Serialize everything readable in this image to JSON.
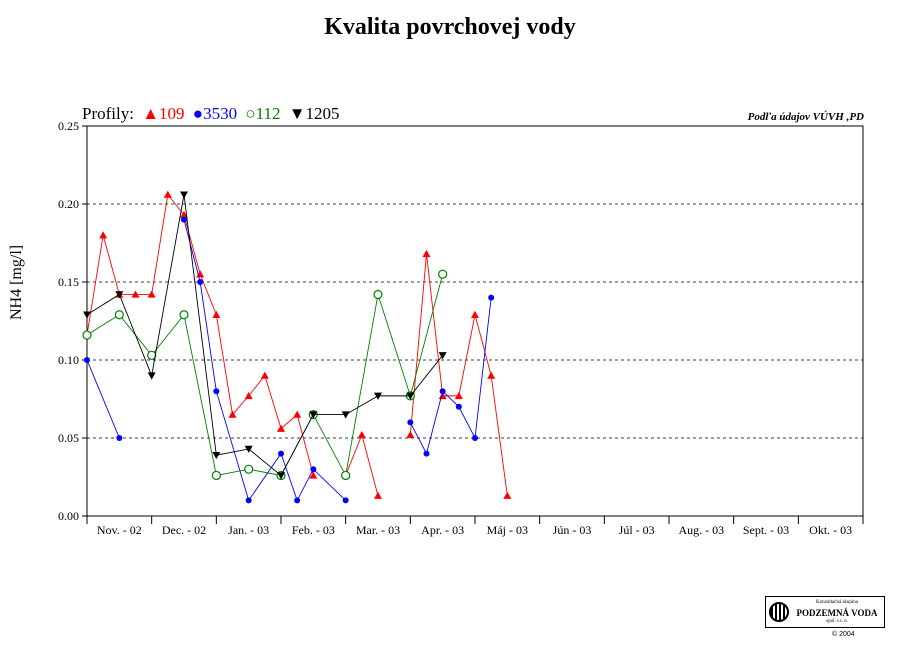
{
  "title": "Kvalita povrchovej vody",
  "source": "Podľa údajov VÚVH ,PD",
  "legend_prefix": "Profily:",
  "logo": {
    "line1": "Konzultačná skupina",
    "line2": "PODZEMNÁ VODA",
    "line3": "spol. s r. o."
  },
  "copyright": "© 2004",
  "colors": {
    "s109": "#ff0000",
    "s3530": "#0000ff",
    "s112": "#008000",
    "s1205": "#000000"
  },
  "chart_data": {
    "type": "line",
    "ylabel": "NH4 [mg/l]",
    "ylim": [
      0,
      0.25
    ],
    "yticks": [
      "0.00",
      "0.05",
      "0.10",
      "0.15",
      "0.20",
      "0.25"
    ],
    "grid": "horizontal-dashed",
    "legend_placement": "top-left",
    "categories": [
      "Nov. - 02",
      "Dec. - 02",
      "Jan. - 03",
      "Feb. - 03",
      "Mar. - 03",
      "Apr. - 03",
      "Máj - 03",
      "Jún - 03",
      "Júl - 03",
      "Aug. - 03",
      "Sept. - 03",
      "Okt. - 03"
    ],
    "series": [
      {
        "name": "109",
        "marker": "triangle-up",
        "color": "#ff0000",
        "points": [
          {
            "x": 0.0,
            "y": 0.116
          },
          {
            "x": 0.5,
            "y": 0.18
          },
          {
            "x": 1.0,
            "y": 0.142
          },
          {
            "x": 1.5,
            "y": 0.142
          },
          {
            "x": 2.0,
            "y": 0.142
          },
          {
            "x": 2.5,
            "y": 0.206
          },
          {
            "x": 3.0,
            "y": 0.193
          },
          {
            "x": 3.5,
            "y": 0.155
          },
          {
            "x": 4.0,
            "y": 0.129
          },
          {
            "x": 4.5,
            "y": 0.065
          },
          {
            "x": 5.0,
            "y": 0.077
          },
          {
            "x": 5.5,
            "y": 0.09
          },
          {
            "x": 6.0,
            "y": 0.056
          },
          {
            "x": 6.5,
            "y": 0.065
          },
          {
            "x": 7.0,
            "y": 0.026
          },
          {
            "x": 7.5,
            "y": null
          },
          {
            "x": 8.0,
            "y": 0.026
          },
          {
            "x": 8.5,
            "y": 0.052
          },
          {
            "x": 9.0,
            "y": 0.013
          },
          {
            "x": 9.5,
            "y": null
          },
          {
            "x": 10.0,
            "y": 0.052
          },
          {
            "x": 10.5,
            "y": 0.168
          },
          {
            "x": 11.0,
            "y": 0.077
          },
          {
            "x": 11.5,
            "y": 0.077
          },
          {
            "x": 12.0,
            "y": 0.129
          },
          {
            "x": 12.5,
            "y": 0.09
          },
          {
            "x": 13.0,
            "y": 0.013
          }
        ]
      },
      {
        "name": "3530",
        "marker": "circle-filled",
        "color": "#0000ff",
        "points": [
          {
            "x": 0.0,
            "y": 0.1
          },
          {
            "x": 1.0,
            "y": 0.05
          },
          {
            "x": 2.0,
            "y": null
          },
          {
            "x": 3.0,
            "y": 0.19
          },
          {
            "x": 3.5,
            "y": 0.15
          },
          {
            "x": 4.0,
            "y": 0.08
          },
          {
            "x": 5.0,
            "y": 0.01
          },
          {
            "x": 6.0,
            "y": 0.04
          },
          {
            "x": 6.5,
            "y": 0.01
          },
          {
            "x": 7.0,
            "y": 0.03
          },
          {
            "x": 8.0,
            "y": 0.01
          },
          {
            "x": 9.0,
            "y": null
          },
          {
            "x": 10.0,
            "y": 0.06
          },
          {
            "x": 10.5,
            "y": 0.04
          },
          {
            "x": 11.0,
            "y": 0.08
          },
          {
            "x": 11.5,
            "y": 0.07
          },
          {
            "x": 12.0,
            "y": 0.05
          },
          {
            "x": 12.5,
            "y": 0.14
          }
        ]
      },
      {
        "name": "112",
        "marker": "circle-open",
        "color": "#008000",
        "points": [
          {
            "x": 0.0,
            "y": 0.116
          },
          {
            "x": 1.0,
            "y": 0.129
          },
          {
            "x": 2.0,
            "y": 0.103
          },
          {
            "x": 3.0,
            "y": 0.129
          },
          {
            "x": 4.0,
            "y": 0.026
          },
          {
            "x": 5.0,
            "y": 0.03
          },
          {
            "x": 6.0,
            "y": 0.026
          },
          {
            "x": 7.0,
            "y": 0.065
          },
          {
            "x": 8.0,
            "y": 0.026
          },
          {
            "x": 9.0,
            "y": 0.142
          },
          {
            "x": 10.0,
            "y": 0.077
          },
          {
            "x": 11.0,
            "y": 0.155
          }
        ]
      },
      {
        "name": "1205",
        "marker": "triangle-down",
        "color": "#000000",
        "points": [
          {
            "x": 0.0,
            "y": 0.129
          },
          {
            "x": 1.0,
            "y": 0.142
          },
          {
            "x": 2.0,
            "y": 0.09
          },
          {
            "x": 3.0,
            "y": 0.206
          },
          {
            "x": 4.0,
            "y": 0.039
          },
          {
            "x": 5.0,
            "y": 0.043
          },
          {
            "x": 6.0,
            "y": 0.026
          },
          {
            "x": 7.0,
            "y": 0.065
          },
          {
            "x": 8.0,
            "y": 0.065
          },
          {
            "x": 9.0,
            "y": 0.077
          },
          {
            "x": 10.0,
            "y": 0.077
          },
          {
            "x": 11.0,
            "y": 0.103
          }
        ]
      }
    ]
  }
}
